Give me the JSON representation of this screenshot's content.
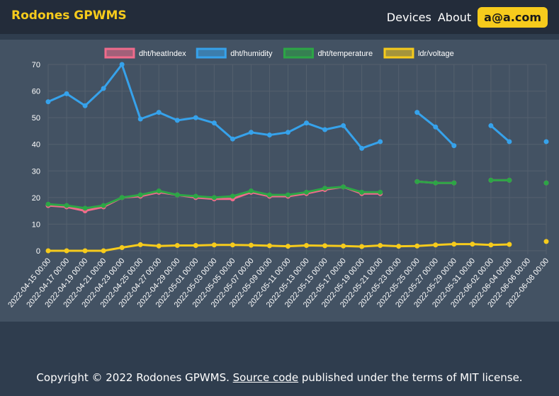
{
  "navbar": {
    "brand": "Rodones GPWMS",
    "devices_label": "Devices",
    "about_label": "About",
    "user_label": "a@a.com"
  },
  "footer": {
    "prefix": "Copyright © 2022 Rodones GPWMS.",
    "link_label": "Source code",
    "suffix": "published under the terms of MIT license."
  },
  "chart_data": {
    "type": "line",
    "x": [
      "2022-04-15 00:00",
      "2022-04-17 00:00",
      "2022-04-19 00:00",
      "2022-04-21 00:00",
      "2022-04-23 00:00",
      "2022-04-25 00:00",
      "2022-04-27 00:00",
      "2022-04-29 00:00",
      "2022-05-01 00:00",
      "2022-05-03 00:00",
      "2022-05-05 00:00",
      "2022-05-07 00:00",
      "2022-05-09 00:00",
      "2022-05-11 00:00",
      "2022-05-13 00:00",
      "2022-05-15 00:00",
      "2022-05-17 00:00",
      "2022-05-19 00:00",
      "2022-05-21 00:00",
      "2022-05-23 00:00",
      "2022-05-25 00:00",
      "2022-05-27 00:00",
      "2022-05-29 00:00",
      "2022-05-31 00:00",
      "2022-06-02 00:00",
      "2022-06-04 00:00",
      "2022-06-06 00:00",
      "2022-06-08 00:00"
    ],
    "ylim": [
      0,
      70
    ],
    "yticks": [
      0,
      10,
      20,
      30,
      40,
      50,
      60,
      70
    ],
    "grid": true,
    "legend_position": "top",
    "series": [
      {
        "name": "dht/heatIndex",
        "color": "#f06b8c",
        "values": [
          17,
          16.5,
          15,
          16.5,
          20,
          20.5,
          22,
          21,
          20,
          19.5,
          19.5,
          22,
          20.5,
          20.5,
          21.5,
          23,
          24,
          21.5,
          21.5,
          null,
          26,
          25.5,
          25.5,
          null,
          26.5,
          26.5,
          null,
          25.5
        ]
      },
      {
        "name": "dht/humidity",
        "color": "#36a2eb",
        "values": [
          56,
          59,
          54.5,
          61,
          70,
          49.5,
          52,
          49,
          50,
          48,
          42,
          44.5,
          43.5,
          44.5,
          48,
          45.5,
          47,
          38.5,
          41,
          null,
          52,
          46.5,
          39.5,
          null,
          47,
          41,
          null,
          41
        ]
      },
      {
        "name": "dht/temperature",
        "color": "#2ca646",
        "values": [
          17.5,
          17,
          16,
          17,
          20,
          21,
          22.5,
          21,
          20.5,
          20,
          20.5,
          22.5,
          21,
          21,
          22,
          23.5,
          24,
          22,
          22,
          null,
          26,
          25.5,
          25.5,
          null,
          26.5,
          26.5,
          null,
          25.5
        ]
      },
      {
        "name": "ldr/voltage",
        "color": "#f6cb1c",
        "values": [
          0,
          0,
          0,
          0,
          1.2,
          2.3,
          1.8,
          2,
          2,
          2.2,
          2.2,
          2.1,
          1.9,
          1.7,
          2,
          1.9,
          1.8,
          1.6,
          2,
          1.7,
          1.8,
          2.2,
          2.5,
          2.5,
          2.2,
          2.4,
          null,
          3.5
        ]
      }
    ]
  }
}
